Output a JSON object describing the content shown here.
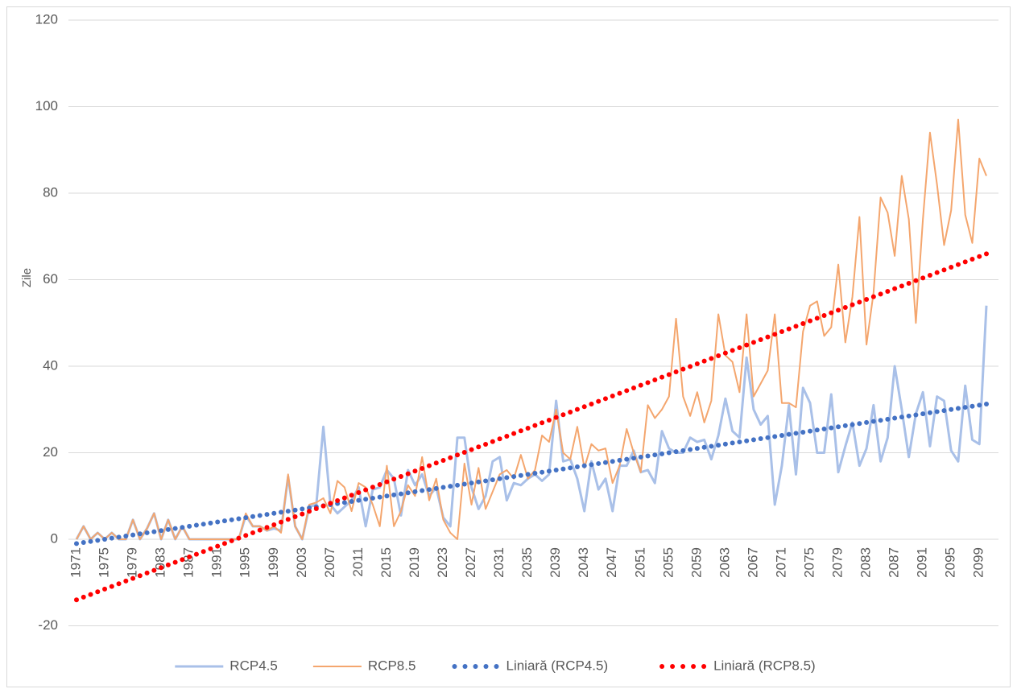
{
  "chart_data": {
    "type": "line",
    "ylabel": "Zile",
    "categories": [
      "1971",
      null,
      null,
      null,
      "1975",
      null,
      null,
      null,
      "1979",
      null,
      null,
      null,
      "1983",
      null,
      null,
      null,
      "1987",
      null,
      null,
      null,
      "1991",
      null,
      null,
      null,
      "1995",
      null,
      null,
      null,
      "1999",
      null,
      null,
      null,
      "2003",
      null,
      null,
      null,
      "2007",
      null,
      null,
      null,
      "2011",
      null,
      null,
      null,
      "2015",
      null,
      null,
      null,
      "2019",
      null,
      null,
      null,
      "2023",
      null,
      null,
      null,
      "2027",
      null,
      null,
      null,
      "2031",
      null,
      null,
      null,
      "2035",
      null,
      null,
      null,
      "2039",
      null,
      null,
      null,
      "2043",
      null,
      null,
      null,
      "2047",
      null,
      null,
      null,
      "2051",
      null,
      null,
      null,
      "2055",
      null,
      null,
      null,
      "2059",
      null,
      null,
      null,
      "2063",
      null,
      null,
      null,
      "2067",
      null,
      null,
      null,
      "2071",
      null,
      null,
      null,
      "2075",
      null,
      null,
      null,
      "2079",
      null,
      null,
      null,
      "2083",
      null,
      null,
      null,
      "2087",
      null,
      null,
      null,
      "2091",
      null,
      null,
      null,
      "2095",
      null,
      null,
      null,
      "2099",
      null
    ],
    "ylim": [
      -20,
      120
    ],
    "yticks": [
      -20,
      0,
      20,
      40,
      60,
      80,
      100,
      120
    ],
    "grid": true,
    "legend": "bottom",
    "series": [
      {
        "name": "RCP4.5",
        "color": "#a9c0e8",
        "style": "line",
        "width": 3,
        "values": [
          0,
          3,
          0,
          1.5,
          0,
          1.5,
          0,
          0,
          4.5,
          0,
          2.5,
          6,
          0,
          4.5,
          0,
          3,
          0,
          0,
          0,
          0,
          0,
          0,
          0,
          0,
          5.5,
          3,
          3,
          2,
          2.5,
          2,
          14.5,
          3,
          0,
          7.5,
          8,
          26,
          8,
          6,
          7.5,
          9,
          12,
          3,
          11.5,
          12,
          16,
          14,
          5.5,
          16,
          12.5,
          15,
          10,
          12,
          5,
          3,
          23.5,
          23.5,
          12,
          7,
          10,
          18,
          19,
          9,
          13,
          12.5,
          14,
          15,
          13.5,
          15,
          32,
          18,
          18.5,
          14,
          6.5,
          18,
          11.5,
          14,
          6.5,
          17,
          17,
          20.5,
          15.5,
          16,
          13,
          25,
          21,
          20,
          20,
          23.5,
          22.5,
          23,
          18.5,
          24,
          32.5,
          25,
          23.5,
          42,
          30,
          26.5,
          28.5,
          8,
          17,
          31,
          15,
          35,
          31.5,
          20,
          20,
          33.5,
          15.5,
          21.5,
          27,
          17,
          21,
          31,
          18,
          23.5,
          40,
          30,
          19,
          29,
          34,
          21.5,
          33,
          32,
          20.5,
          18,
          35.5,
          23,
          22,
          54
        ]
      },
      {
        "name": "RCP8.5",
        "color": "#f4a66e",
        "style": "line",
        "width": 2,
        "values": [
          0,
          3,
          0,
          1.5,
          0,
          1.5,
          0,
          0,
          4.5,
          0,
          2.5,
          6,
          0,
          4.5,
          0,
          3,
          0,
          0,
          0,
          0,
          0,
          0,
          0,
          0,
          6,
          3,
          3,
          2,
          3,
          1.5,
          15,
          3,
          0,
          8,
          8.5,
          9.5,
          6,
          13.5,
          12,
          6.5,
          13,
          12,
          8,
          3,
          17,
          3,
          6.5,
          12.5,
          10,
          19,
          9,
          14,
          4.5,
          1.5,
          0,
          17.5,
          8,
          16.5,
          7,
          11,
          15,
          16,
          14,
          19.5,
          14,
          16,
          24,
          22.5,
          30,
          20,
          18.5,
          26,
          16.5,
          22,
          20.5,
          21,
          13,
          17,
          25.5,
          20,
          15.5,
          31,
          28,
          30,
          33,
          51,
          33,
          28.5,
          34,
          27,
          32,
          52,
          42.5,
          41,
          34,
          52,
          33,
          36,
          39,
          52,
          31.5,
          31.5,
          30.5,
          48,
          54,
          55,
          47,
          49,
          63.5,
          45.5,
          56,
          74.5,
          45,
          57,
          79,
          75.5,
          65.5,
          84,
          74,
          50,
          74,
          94,
          82,
          68,
          76,
          97,
          75,
          68.5,
          88,
          84
        ]
      },
      {
        "name": "Liniară (RCP4.5)",
        "color": "#4472c4",
        "style": "dotted",
        "width": 6,
        "values": [
          -1,
          -0.75,
          -0.5,
          -0.25,
          0,
          0.25,
          0.5,
          0.75,
          1,
          1.25,
          1.5,
          1.75,
          2,
          2.25,
          2.5,
          2.75,
          3,
          3.25,
          3.5,
          3.75,
          4,
          4.25,
          4.5,
          4.75,
          5,
          5.25,
          5.5,
          5.75,
          6,
          6.25,
          6.5,
          6.75,
          7,
          7.25,
          7.5,
          7.75,
          8,
          8.25,
          8.5,
          8.75,
          9,
          9.25,
          9.5,
          9.75,
          10,
          10.25,
          10.5,
          10.75,
          11,
          11.25,
          11.5,
          11.75,
          12,
          12.25,
          12.5,
          12.75,
          13,
          13.25,
          13.5,
          13.75,
          14,
          14.25,
          14.5,
          14.75,
          15,
          15.25,
          15.5,
          15.75,
          16,
          16.25,
          16.5,
          16.75,
          17,
          17.25,
          17.5,
          17.75,
          18,
          18.25,
          18.5,
          18.75,
          19,
          19.25,
          19.5,
          19.75,
          20,
          20.25,
          20.5,
          20.75,
          21,
          21.25,
          21.5,
          21.75,
          22,
          22.25,
          22.5,
          22.75,
          23,
          23.25,
          23.5,
          23.75,
          24,
          24.25,
          24.5,
          24.75,
          25,
          25.25,
          25.5,
          25.75,
          26,
          26.25,
          26.5,
          26.75,
          27,
          27.25,
          27.5,
          27.75,
          28,
          28.25,
          28.5,
          28.75,
          29,
          29.25,
          29.5,
          29.75,
          30,
          30.25,
          30.5,
          30.75,
          31,
          31.25
        ]
      },
      {
        "name": "Liniară (RCP8.5)",
        "color": "#ff0000",
        "style": "dotted",
        "width": 6,
        "values": [
          -14,
          -13.38,
          -12.76,
          -12.14,
          -11.52,
          -10.9,
          -10.28,
          -9.66,
          -9.04,
          -8.42,
          -7.8,
          -7.18,
          -6.56,
          -5.94,
          -5.32,
          -4.7,
          -4.08,
          -3.46,
          -2.84,
          -2.22,
          -1.6,
          -0.98,
          -0.36,
          0.26,
          0.88,
          1.5,
          2.12,
          2.74,
          3.36,
          3.98,
          4.6,
          5.22,
          5.84,
          6.46,
          7.08,
          7.7,
          8.32,
          8.94,
          9.56,
          10.18,
          10.8,
          11.42,
          12.04,
          12.66,
          13.28,
          13.9,
          14.52,
          15.14,
          15.76,
          16.38,
          17,
          17.62,
          18.24,
          18.86,
          19.48,
          20.1,
          20.72,
          21.34,
          21.96,
          22.58,
          23.2,
          23.82,
          24.44,
          25.06,
          25.68,
          26.3,
          26.92,
          27.54,
          28.16,
          28.78,
          29.4,
          30.02,
          30.64,
          31.26,
          31.88,
          32.5,
          33.12,
          33.74,
          34.36,
          34.98,
          35.6,
          36.22,
          36.84,
          37.46,
          38.08,
          38.7,
          39.32,
          39.94,
          40.56,
          41.18,
          41.8,
          42.42,
          43.04,
          43.66,
          44.28,
          44.9,
          45.52,
          46.14,
          46.76,
          47.38,
          48,
          48.62,
          49.24,
          49.86,
          50.48,
          51.1,
          51.72,
          52.34,
          52.96,
          53.58,
          54.2,
          54.82,
          55.44,
          56.06,
          56.68,
          57.3,
          57.92,
          58.54,
          59.16,
          59.78,
          60.4,
          61.02,
          61.64,
          62.26,
          62.88,
          63.5,
          64.12,
          64.74,
          65.36,
          65.98
        ]
      }
    ]
  }
}
